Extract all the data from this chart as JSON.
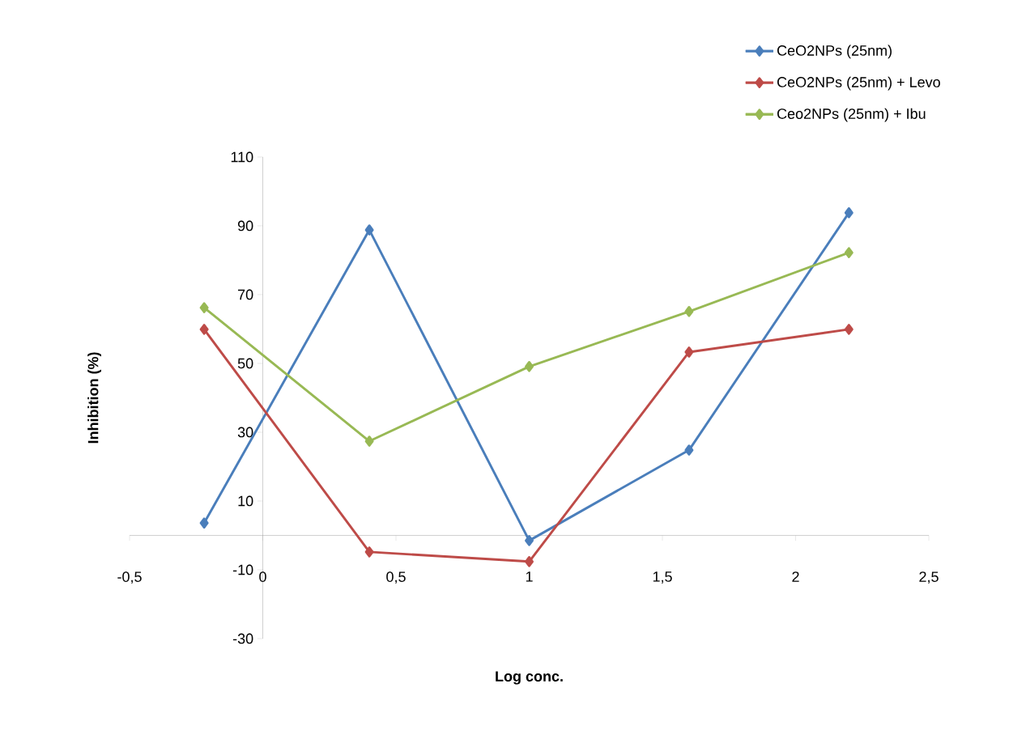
{
  "chart_data": {
    "type": "line",
    "xlabel": "Log conc.",
    "ylabel": "Inhibition (%)",
    "x": [
      -0.22,
      0.4,
      1,
      1.6,
      2.2
    ],
    "series": [
      {
        "name": "CeO2NPs (25nm)",
        "color": "#4a7ebb",
        "values": [
          3.6,
          88.8,
          -1.5,
          24.8,
          93.8
        ]
      },
      {
        "name": "CeO2NPs (25nm) + Levo",
        "color": "#be4b48",
        "values": [
          59.9,
          -4.8,
          -7.6,
          53.3,
          59.9
        ]
      },
      {
        "name": "Ceo2NPs (25nm) + Ibu",
        "color": "#98b954",
        "values": [
          66.2,
          27.4,
          49.1,
          65.1,
          82.2
        ]
      }
    ],
    "xlim": [
      -0.5,
      2.5
    ],
    "xticks": [
      {
        "value": -0.5,
        "label": "-0,5"
      },
      0,
      {
        "value": 0.5,
        "label": "0,5"
      },
      1,
      {
        "value": 1.5,
        "label": "1,5"
      },
      2,
      {
        "value": 2.5,
        "label": "2,5"
      }
    ],
    "ylim": [
      -30,
      110
    ],
    "yticks": [
      -30,
      -10,
      10,
      30,
      50,
      70,
      90,
      110
    ],
    "legend": "top right",
    "marker": "diamond",
    "line_style": "solid"
  }
}
